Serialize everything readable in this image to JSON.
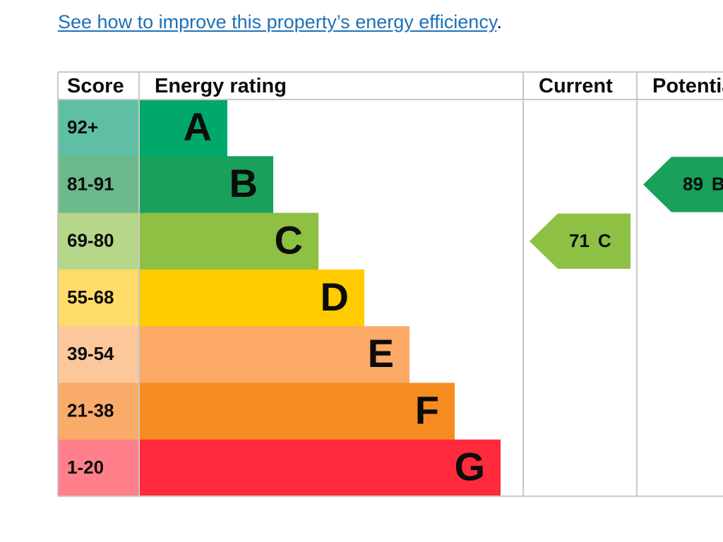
{
  "link": {
    "text": "See how to improve this property’s energy efficiency",
    "trailing": "."
  },
  "table": {
    "headers": [
      "Score",
      "Energy rating",
      "Current",
      "Potential"
    ],
    "rows": [
      {
        "score": "92+",
        "rating": "A"
      },
      {
        "score": "81-91",
        "rating": "B"
      },
      {
        "score": "69-80",
        "rating": "C"
      },
      {
        "score": "55-68",
        "rating": "D"
      },
      {
        "score": "39-54",
        "rating": "E"
      },
      {
        "score": "21-38",
        "rating": "F"
      },
      {
        "score": "1-20",
        "rating": "G"
      }
    ],
    "current": {
      "value": 71,
      "rating": "C"
    },
    "potential": {
      "value": 89,
      "rating": "B"
    }
  }
}
